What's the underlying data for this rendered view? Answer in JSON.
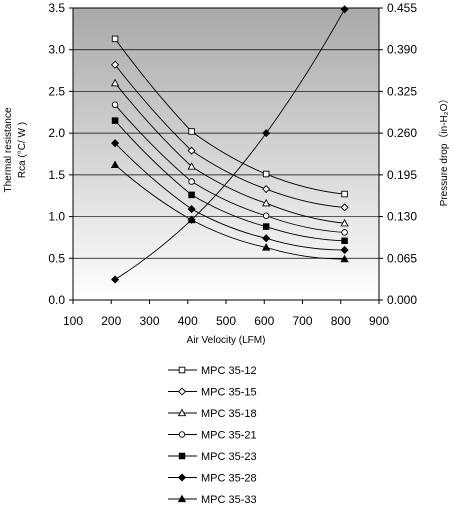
{
  "chart_data": {
    "type": "line",
    "xlabel": "Air Velocity (LFM)",
    "ylabel_left_line1": "Thermal resistance",
    "ylabel_left_line2": "Rca (°C/ W )",
    "ylabel_right": "Pressure drop（in-H₂O）",
    "xlim": [
      100,
      900
    ],
    "x_ticks": [
      "100",
      "200",
      "300",
      "400",
      "500",
      "600",
      "700",
      "800",
      "900"
    ],
    "ylim_left": [
      0,
      3.5
    ],
    "y_ticks_left": [
      "0.0",
      "0.5",
      "1.0",
      "1.5",
      "2.0",
      "2.5",
      "3.0",
      "3.5"
    ],
    "ylim_right": [
      0,
      0.455
    ],
    "y_ticks_right": [
      "0.000",
      "0.065",
      "0.130",
      "0.195",
      "0.260",
      "0.325",
      "0.390",
      "0.455"
    ],
    "grid": "horizontal",
    "legend_position": "bottom",
    "x": [
      210,
      410,
      605,
      810
    ],
    "series": [
      {
        "name": "MPC 35-12",
        "marker": "square-open",
        "values": [
          3.13,
          2.02,
          1.51,
          1.27
        ]
      },
      {
        "name": "MPC 35-15",
        "marker": "diamond-open",
        "values": [
          2.82,
          1.79,
          1.33,
          1.11
        ]
      },
      {
        "name": "MPC 35-18",
        "marker": "triangle-open",
        "values": [
          2.6,
          1.6,
          1.16,
          0.92
        ]
      },
      {
        "name": "MPC 35-21",
        "marker": "circle-open",
        "values": [
          2.34,
          1.42,
          1.01,
          0.81
        ]
      },
      {
        "name": "MPC 35-23",
        "marker": "square-filled",
        "values": [
          2.15,
          1.26,
          0.88,
          0.71
        ]
      },
      {
        "name": "MPC 35-28",
        "marker": "diamond-filled",
        "values": [
          1.88,
          1.09,
          0.74,
          0.6
        ]
      },
      {
        "name": "MPC 35-33",
        "marker": "triangle-filled",
        "values": [
          1.62,
          0.96,
          0.63,
          0.49
        ]
      }
    ],
    "pressure_series": {
      "axis": "right",
      "marker": "diamond-filled",
      "values": [
        0.032,
        0.125,
        0.26,
        0.453
      ]
    }
  }
}
